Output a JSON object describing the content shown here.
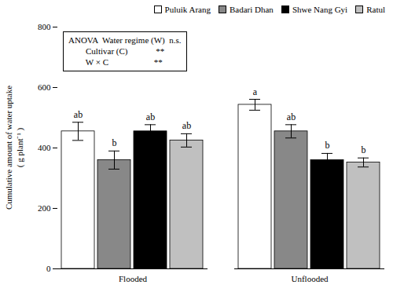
{
  "chart_data": {
    "type": "bar",
    "categories": [
      "Flooded",
      "Unflooded"
    ],
    "ylabel": "Cumulative amount of water uptake\n( g plant⁻¹ )",
    "ylim": [
      0,
      800
    ],
    "yticks": [
      0,
      200,
      400,
      600,
      800
    ],
    "grid": false,
    "legend": "upper right",
    "series": [
      {
        "name": "Puluik Arang",
        "color": "white",
        "values": [
          455,
          543
        ],
        "errors": [
          30,
          18
        ],
        "annotations": [
          "ab",
          "a"
        ]
      },
      {
        "name": "Badari Dhan",
        "color": "#888888",
        "values": [
          360,
          455
        ],
        "errors": [
          30,
          22
        ],
        "annotations": [
          "b",
          "ab"
        ]
      },
      {
        "name": "Shwe Nang Gyi",
        "color": "#000000",
        "values": [
          455,
          360
        ],
        "errors": [
          22,
          22
        ],
        "annotations": [
          "ab",
          "b"
        ]
      },
      {
        "name": "Ratul",
        "color": "#c0c0c0",
        "values": [
          425,
          352
        ],
        "errors": [
          22,
          15
        ],
        "annotations": [
          "ab",
          "b"
        ]
      }
    ],
    "annotations": [
      "ANOVA  Water regime (W)  n.s.",
      "        Cultivar (C)             **",
      "        W × C                     **"
    ]
  }
}
